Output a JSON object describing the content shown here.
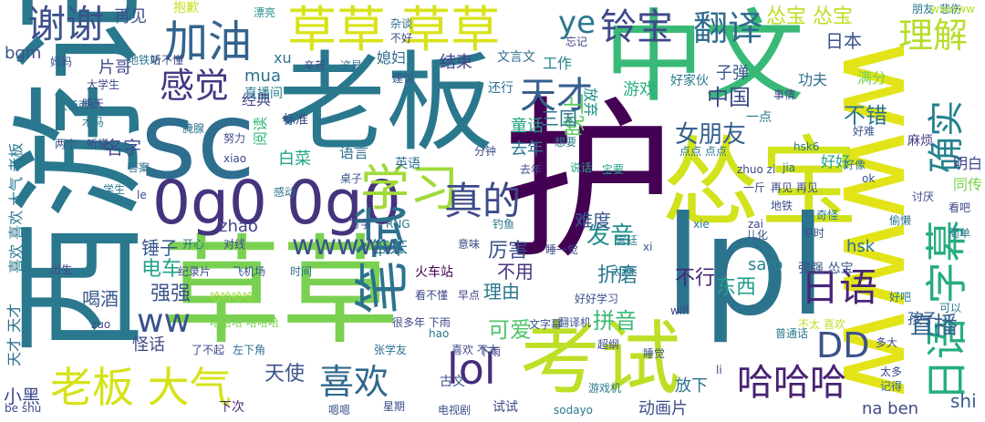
{
  "words": [
    {
      "text": "中文",
      "color": "#38b977"
    },
    {
      "text": "老板",
      "color": "#2a788e"
    },
    {
      "text": "西游记",
      "color": "#2a788e"
    },
    {
      "text": "草草",
      "color": "#7ad151"
    },
    {
      "text": "wwww",
      "color": "#e2e418"
    },
    {
      "text": "怂宝",
      "color": "#d2e21b"
    },
    {
      "text": "考试",
      "color": "#bddf26"
    },
    {
      "text": "lpl",
      "color": "#2c738e"
    },
    {
      "text": "sc",
      "color": "#2e6e8e"
    },
    {
      "text": "0g0 0g0",
      "color": "#46337e"
    },
    {
      "text": "护",
      "color": "#440154"
    },
    {
      "text": "草草 草草",
      "color": "#d8e219"
    },
    {
      "text": "学习",
      "color": "#a0da39"
    },
    {
      "text": "加油",
      "color": "#33638d"
    },
    {
      "text": "真的",
      "color": "#3e4a89"
    },
    {
      "text": "谢谢",
      "color": "#3b528b"
    },
    {
      "text": "笔试",
      "color": "#2c728e"
    },
    {
      "text": "老板 大气",
      "color": "#d5e21a"
    },
    {
      "text": "日语 字幕",
      "color": "#25ac82"
    },
    {
      "text": "确实",
      "color": "#26828e"
    },
    {
      "text": "哈哈哈",
      "color": "#482173"
    },
    {
      "text": "日语",
      "color": "#482677"
    },
    {
      "text": "喜欢",
      "color": "#30688e"
    },
    {
      "text": "lol",
      "color": "#472d7b"
    },
    {
      "text": "DD",
      "color": "#3b528b"
    },
    {
      "text": "天才",
      "color": "#355f8d"
    },
    {
      "text": "理解",
      "color": "#b5de2b"
    },
    {
      "text": "感觉",
      "color": "#443983"
    },
    {
      "text": "翻译",
      "color": "#2f6b8e"
    },
    {
      "text": "铃宝",
      "color": "#3f4889"
    },
    {
      "text": "ye",
      "color": "#2a788e"
    },
    {
      "text": "ww",
      "color": "#3a538b"
    },
    {
      "text": "wwwww",
      "color": "#3b528b"
    },
    {
      "text": "发音",
      "color": "#21918c"
    },
    {
      "text": "女朋友",
      "color": "#355f8d"
    },
    {
      "text": "直播",
      "color": "#33638d"
    },
    {
      "text": "中国",
      "color": "#3e4989"
    },
    {
      "text": "不错",
      "color": "#2b748e"
    },
    {
      "text": "电车",
      "color": "#20a386"
    },
    {
      "text": "不行",
      "color": "#482576"
    },
    {
      "text": "东西",
      "color": "#1f9e89"
    },
    {
      "text": "可爱",
      "color": "#50c46a"
    },
    {
      "text": "拼音",
      "color": "#3aba76"
    },
    {
      "text": "天使",
      "color": "#3b528b"
    },
    {
      "text": "强强",
      "color": "#3b528b"
    },
    {
      "text": "名字",
      "color": "#3f4889"
    },
    {
      "text": "锤子",
      "color": "#38588c"
    },
    {
      "text": "喝酒",
      "color": "#375a8c"
    },
    {
      "text": "晚上",
      "color": "#5ec962"
    },
    {
      "text": "厉害",
      "color": "#3a548c"
    },
    {
      "text": "理由",
      "color": "#2a778e"
    },
    {
      "text": "不用",
      "color": "#46327e"
    },
    {
      "text": "难度",
      "color": "#39568c"
    },
    {
      "text": "笨笨",
      "color": "#2a788e"
    },
    {
      "text": "折磨",
      "color": "#2a788e"
    },
    {
      "text": "小黑",
      "color": "#3e4989"
    },
    {
      "text": "下次",
      "color": "#482979"
    },
    {
      "text": "动画片",
      "color": "#3c508b"
    },
    {
      "text": "放下",
      "color": "#2c728e"
    },
    {
      "text": "孩子",
      "color": "#38588c"
    },
    {
      "text": "shi",
      "color": "#365d8d"
    },
    {
      "text": "na ben",
      "color": "#3e4989"
    },
    {
      "text": "saro",
      "color": "#25848e"
    },
    {
      "text": "zhao",
      "color": "#3f4788"
    },
    {
      "text": "hsk",
      "color": "#2c728e"
    },
    {
      "text": "mua",
      "color": "#2d718e"
    },
    {
      "text": "xu",
      "color": "#2a788e"
    },
    {
      "text": "bgm",
      "color": "#3b528b"
    },
    {
      "text": "片哥",
      "color": "#3f4889"
    },
    {
      "text": "结束",
      "color": "#414487"
    },
    {
      "text": "工作",
      "color": "#27808e"
    },
    {
      "text": "三国",
      "color": "#2c728e"
    },
    {
      "text": "游戏",
      "color": "#29af7f"
    },
    {
      "text": "放弃",
      "color": "#21918c"
    },
    {
      "text": "怂宝 怂宝",
      "color": "#bddf26"
    },
    {
      "text": "日本",
      "color": "#3a548c"
    },
    {
      "text": "再见",
      "color": "#3b528b"
    },
    {
      "text": "抱歉",
      "color": "#c8e020"
    },
    {
      "text": "漂亮",
      "color": "#21918c"
    },
    {
      "text": "杂谈",
      "color": "#2e6e8e"
    },
    {
      "text": "朋友",
      "color": "#2a788e"
    },
    {
      "text": "悲伤",
      "color": "#2a788e"
    },
    {
      "text": "wwwww",
      "color": "#b5de2b"
    },
    {
      "text": "不好",
      "color": "#3e4989"
    },
    {
      "text": "忘记",
      "color": "#414487"
    },
    {
      "text": "媳妇",
      "color": "#2e6e8e"
    },
    {
      "text": "文言文",
      "color": "#2e6e8e"
    },
    {
      "text": "好家伙",
      "color": "#2a788e"
    },
    {
      "text": "子弹",
      "color": "#38588c"
    },
    {
      "text": "功夫",
      "color": "#2d708e"
    },
    {
      "text": "满分",
      "color": "#7ad151"
    },
    {
      "text": "好难",
      "color": "#3b528b"
    },
    {
      "text": "事情",
      "color": "#3e4989"
    },
    {
      "text": "直播间",
      "color": "#27808e"
    },
    {
      "text": "经典",
      "color": "#3f4889"
    },
    {
      "text": "标准",
      "color": "#3e4989"
    },
    {
      "text": "阅读",
      "color": "#35b779"
    },
    {
      "text": "建议",
      "color": "#3b528b"
    },
    {
      "text": "还行",
      "color": "#2c728e"
    },
    {
      "text": "一点",
      "color": "#2a788e"
    },
    {
      "text": "麻烦",
      "color": "#443983"
    },
    {
      "text": "白菜",
      "color": "#20a386"
    },
    {
      "text": "语言",
      "color": "#2c728e"
    },
    {
      "text": "去年",
      "color": "#2a788e"
    },
    {
      "text": "童话",
      "color": "#20a386"
    },
    {
      "text": "好好",
      "color": "#20a386"
    },
    {
      "text": "明白",
      "color": "#3f4889"
    },
    {
      "text": "同传",
      "color": "#7ad151"
    },
    {
      "text": "好像",
      "color": "#2a788e"
    },
    {
      "text": "英语",
      "color": "#2e6e8e"
    },
    {
      "text": "分钟",
      "color": "#3e4989"
    },
    {
      "text": "说话",
      "color": "#22a785"
    },
    {
      "text": "宝要",
      "color": "#20a386"
    },
    {
      "text": "点点 点点",
      "color": "#2a788e"
    },
    {
      "text": "hsk6",
      "color": "#2a788e"
    },
    {
      "text": "zhuo zi",
      "color": "#3e4989"
    },
    {
      "text": "jia",
      "color": "#2e6e8e"
    },
    {
      "text": "一斤",
      "color": "#3e4989"
    },
    {
      "text": "再见 再见",
      "color": "#3f4889"
    },
    {
      "text": "地铁",
      "color": "#3b528b"
    },
    {
      "text": "奇怪",
      "color": "#2a788e"
    },
    {
      "text": "讨厌",
      "color": "#3e4989"
    },
    {
      "text": "看吧",
      "color": "#3e4989"
    },
    {
      "text": "简单",
      "color": "#2a788e"
    },
    {
      "text": "儿化",
      "color": "#3b528b"
    },
    {
      "text": "zai",
      "color": "#3e4989"
    },
    {
      "text": "宫廷",
      "color": "#2a788e"
    },
    {
      "text": "睡一觉",
      "color": "#3f4889"
    },
    {
      "text": "强强 怂宝",
      "color": "#3b528b"
    },
    {
      "text": "火车站",
      "color": "#440154"
    },
    {
      "text": "看不懂",
      "color": "#3e4989"
    },
    {
      "text": "早点",
      "color": "#414487"
    },
    {
      "text": "好好学习",
      "color": "#3b528b"
    },
    {
      "text": "太难",
      "color": "#2a788e"
    },
    {
      "text": "很多年 下雨",
      "color": "#3e4989"
    },
    {
      "text": "翻译机",
      "color": "#3b528b"
    },
    {
      "text": "文字幕",
      "color": "#3b528b"
    },
    {
      "text": "不太 喜欢",
      "color": "#bddf26"
    },
    {
      "text": "wifi",
      "color": "#3e4989"
    },
    {
      "text": "哈哈哈哈",
      "color": "#a0da39"
    },
    {
      "text": "哈哈哈 哈哈哈",
      "color": "#7ad151"
    },
    {
      "text": "怪话",
      "color": "#3f4889"
    },
    {
      "text": "左下角",
      "color": "#2e6e8e"
    },
    {
      "text": "了不起",
      "color": "#3e4989"
    },
    {
      "text": "张学友",
      "color": "#2e6e8e"
    },
    {
      "text": "喜欢 不太",
      "color": "#3e4989"
    },
    {
      "text": "超纲",
      "color": "#3e4989"
    },
    {
      "text": "睡觉",
      "color": "#3b528b"
    },
    {
      "text": "普通话",
      "color": "#2a788e"
    },
    {
      "text": "多大",
      "color": "#3e4989"
    },
    {
      "text": "太多",
      "color": "#3e4989"
    },
    {
      "text": "试试",
      "color": "#3f4889"
    },
    {
      "text": "电视剧",
      "color": "#3b528b"
    },
    {
      "text": "sodayo",
      "color": "#2a788e"
    },
    {
      "text": "古文",
      "color": "#3b528b"
    },
    {
      "text": "记得",
      "color": "#2e6e8e"
    },
    {
      "text": "天才 天才",
      "color": "#2e6e8e"
    },
    {
      "text": "喜欢 喜欢 大气 老板",
      "color": "#2a788e"
    },
    {
      "text": "大话西游",
      "color": "#2c728e"
    },
    {
      "text": "两个",
      "color": "#3b528b"
    },
    {
      "text": "学生",
      "color": "#2a788e"
    },
    {
      "text": "出生",
      "color": "#3f4889"
    },
    {
      "text": "开心",
      "color": "#2e6e8e"
    },
    {
      "text": "纪录片",
      "color": "#3e4989"
    },
    {
      "text": "飞机场",
      "color": "#38588c"
    },
    {
      "text": "时间",
      "color": "#2e6e8e"
    },
    {
      "text": "写字",
      "color": "#3e4989"
    },
    {
      "text": "RNG",
      "color": "#2a788e"
    },
    {
      "text": "意味",
      "color": "#3e4989"
    },
    {
      "text": "对线",
      "color": "#3f4889"
    },
    {
      "text": "努力",
      "color": "#3e4989"
    },
    {
      "text": "桌子",
      "color": "#3b528b"
    },
    {
      "text": "xiao",
      "color": "#3e4989"
    },
    {
      "text": "le",
      "color": "#3e4989"
    },
    {
      "text": "答案",
      "color": "#2e6e8e"
    },
    {
      "text": "腌腺",
      "color": "#2a788e"
    },
    {
      "text": "辛苦",
      "color": "#3f4889"
    },
    {
      "text": "这是",
      "color": "#2e6e8e"
    },
    {
      "text": "大学生",
      "color": "#3e4989"
    },
    {
      "text": "地铁站",
      "color": "#2a788e"
    },
    {
      "text": "听不懂",
      "color": "#3e4989"
    },
    {
      "text": "妈妈",
      "color": "#3b528b"
    },
    {
      "text": "明天",
      "color": "#3e4989"
    },
    {
      "text": "木马",
      "color": "#2a788e"
    },
    {
      "text": "听懂",
      "color": "#3e4989"
    },
    {
      "text": "hao",
      "color": "#2a788e"
    },
    {
      "text": "下雨",
      "color": "#3e4989"
    },
    {
      "text": "li",
      "color": "#3e4989"
    },
    {
      "text": "xi",
      "color": "#3b528b"
    },
    {
      "text": "可以",
      "color": "#2a788e"
    },
    {
      "text": "ok",
      "color": "#3b528b"
    },
    {
      "text": "be shu",
      "color": "#3e4989"
    },
    {
      "text": "zuo",
      "color": "#3e4989"
    },
    {
      "text": "xie",
      "color": "#2a788e"
    },
    {
      "text": "想要",
      "color": "#2a788e"
    },
    {
      "text": "去年",
      "color": "#3f4889"
    },
    {
      "text": "好吧",
      "color": "#2a788e"
    },
    {
      "text": "钓鱼",
      "color": "#2a788e"
    },
    {
      "text": "感动",
      "color": "#2e6e8e"
    },
    {
      "text": "偷懒",
      "color": "#2e6e8e"
    },
    {
      "text": "平时",
      "color": "#3b528b"
    },
    {
      "text": "游戏机",
      "color": "#2a788e"
    },
    {
      "text": "星期",
      "color": "#3e4989"
    },
    {
      "text": "嗯嗯",
      "color": "#3b528b"
    }
  ]
}
